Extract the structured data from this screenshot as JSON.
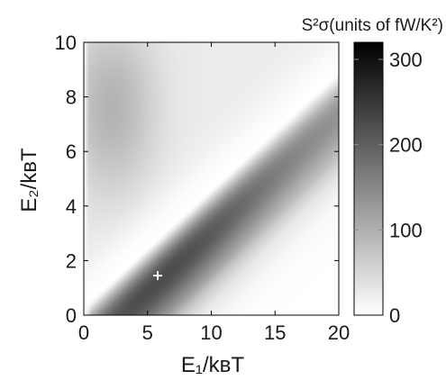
{
  "chart_data": {
    "type": "heatmap",
    "title": "S²σ(units of fW/K²)",
    "xlabel": "E₁/kʙT",
    "ylabel": "E₂/kʙT",
    "xlim": [
      0,
      20
    ],
    "ylim": [
      0,
      10
    ],
    "xticks": [
      "0",
      "5",
      "10",
      "15",
      "20"
    ],
    "xtick_values": [
      0,
      5,
      10,
      15,
      20
    ],
    "yticks": [
      "0",
      "2",
      "4",
      "6",
      "8",
      "10"
    ],
    "ytick_values": [
      0,
      2,
      4,
      6,
      8,
      10
    ],
    "colorbar": {
      "ticks": [
        "0",
        "100",
        "200",
        "300"
      ],
      "tick_values": [
        0,
        100,
        200,
        300
      ],
      "range": [
        0,
        320
      ],
      "colormap": "gray_r"
    },
    "marker": {
      "symbol": "+",
      "x": 5.8,
      "y": 1.45,
      "value": 320,
      "color": "#ffffff"
    },
    "model": {
      "description_of_shape": "Power factor maximum near (5.8, 1.45); zero along ridge line E2 ≈ 0.43·E1 + 0.3; secondary lobe above the ridge peaking near (2, 7.5) at ≈ 95",
      "peak_value": 320,
      "upper_lobe_peak": 95
    }
  }
}
